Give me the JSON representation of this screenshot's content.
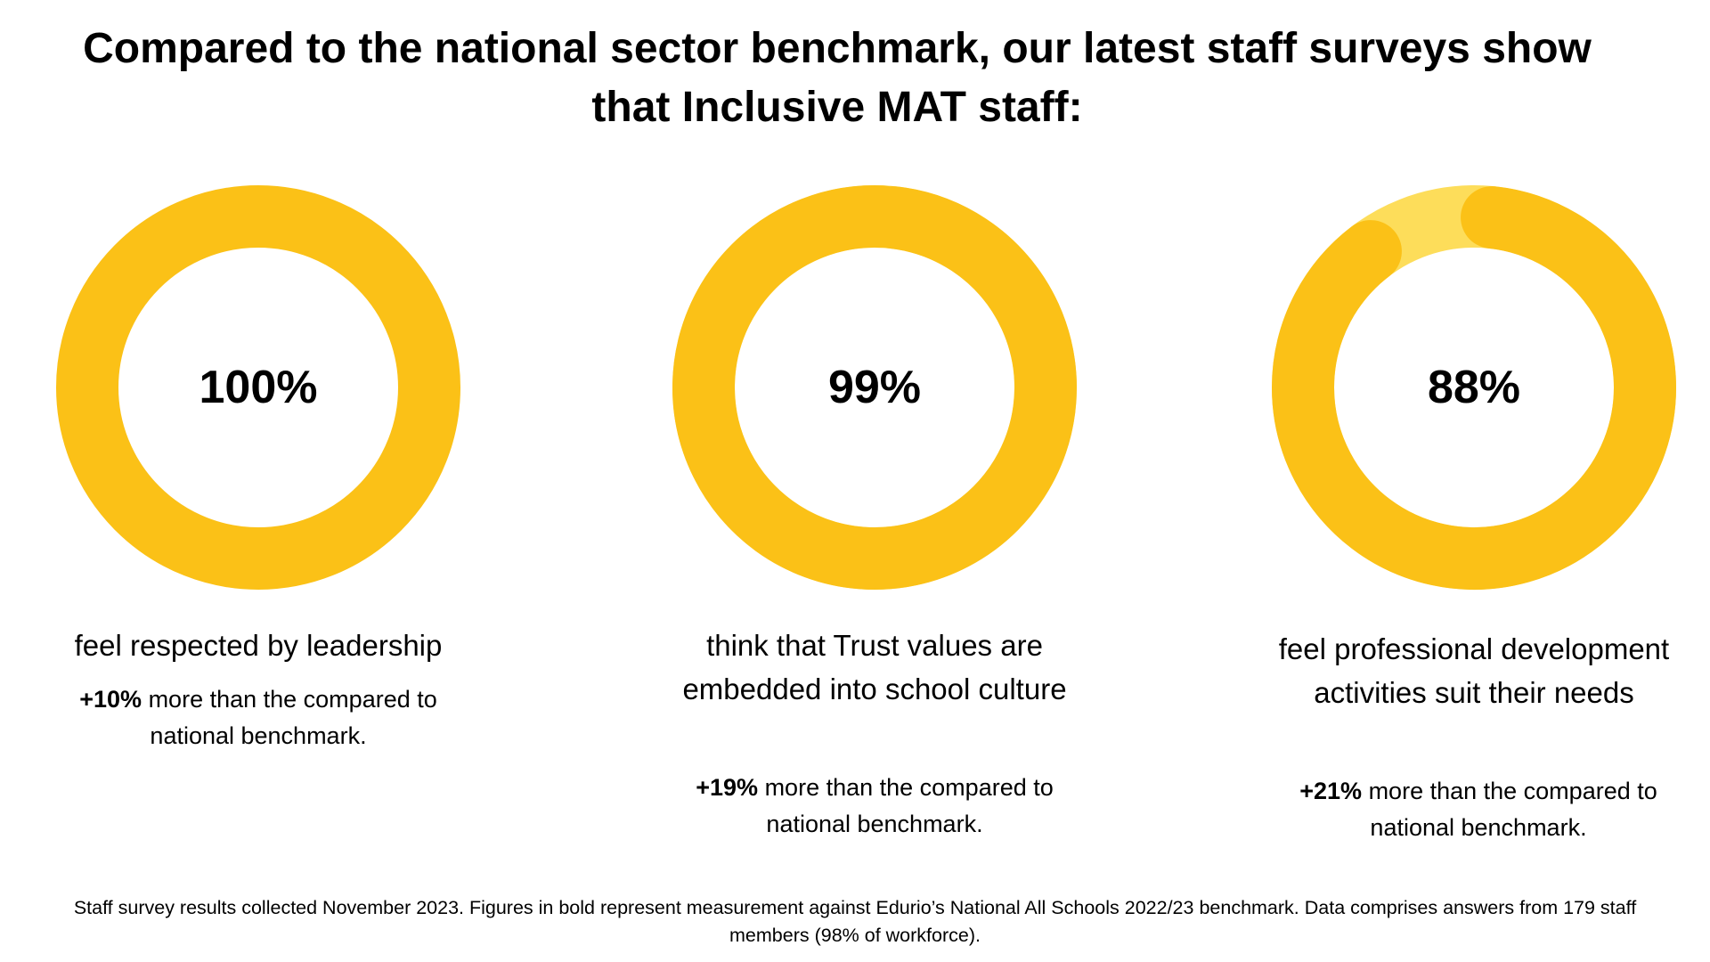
{
  "title": {
    "line1": "Compared to the national sector benchmark, our latest staff surveys show",
    "line2": "that Inclusive MAT staff:"
  },
  "colors": {
    "filled": "#FBC117",
    "remaining": "#FDDD5A"
  },
  "chart_data": {
    "type": "pie",
    "variant": "donut",
    "items": [
      {
        "value": 100,
        "label": "100%",
        "caption": "feel respected by leadership",
        "delta": "+10%",
        "delta_text": " more than the compared to national benchmark."
      },
      {
        "value": 99,
        "label": "99%",
        "caption": "think that Trust values are embedded into school culture",
        "delta": "+19%",
        "delta_text": " more than the compared to national benchmark."
      },
      {
        "value": 88,
        "label": "88%",
        "caption": "feel professional development activities suit their needs",
        "delta": "+21%",
        "delta_text": " more than the compared to national benchmark."
      }
    ]
  },
  "footnote": "Staff survey results collected November 2023. Figures in bold represent measurement against Edurio’s National All Schools 2022/23 benchmark. Data comprises answers from 179 staff members  (98% of workforce)."
}
